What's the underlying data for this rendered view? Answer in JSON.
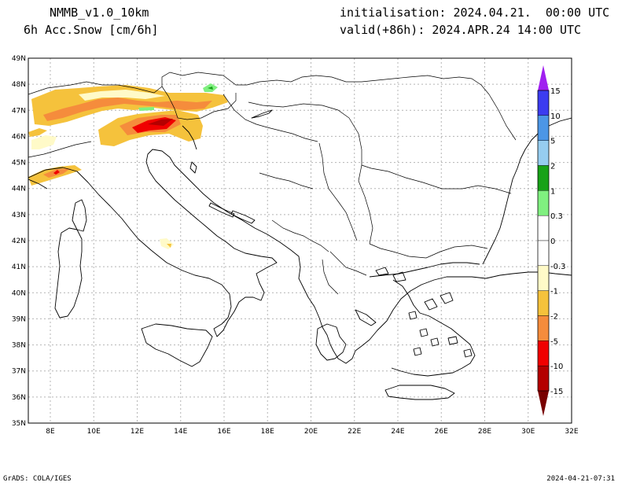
{
  "header": {
    "model": "NMMB_v1.0_10km",
    "field": "6h Acc.Snow [cm/6h]",
    "init": "initialisation: 2024.04.21.  00:00 UTC",
    "valid": "valid(+86h): 2024.APR.24 14:00 UTC"
  },
  "footer": {
    "left": "GrADS: COLA/IGES",
    "right": "2024-04-21-07:31"
  },
  "axes": {
    "lat_labels": [
      "49N",
      "48N",
      "47N",
      "46N",
      "45N",
      "44N",
      "43N",
      "42N",
      "41N",
      "40N",
      "39N",
      "38N",
      "37N",
      "36N",
      "35N"
    ],
    "lon_labels": [
      "8E",
      "10E",
      "12E",
      "14E",
      "16E",
      "18E",
      "20E",
      "22E",
      "24E",
      "26E",
      "28E",
      "30E",
      "32E"
    ]
  },
  "legend": {
    "labels": [
      "15",
      "10",
      "5",
      "2",
      "1",
      "0.3",
      "0",
      "-0.3",
      "-1",
      "-2",
      "-5",
      "-10",
      "-15"
    ],
    "colors": [
      "#a020f0",
      "#3c3cf0",
      "#4c96e6",
      "#96cdf0",
      "#18a218",
      "#80f080",
      "#ffffff",
      "#ffffff",
      "#fffac8",
      "#f5c23c",
      "#f58c3c",
      "#f00000",
      "#b40000",
      "#780000"
    ]
  }
}
